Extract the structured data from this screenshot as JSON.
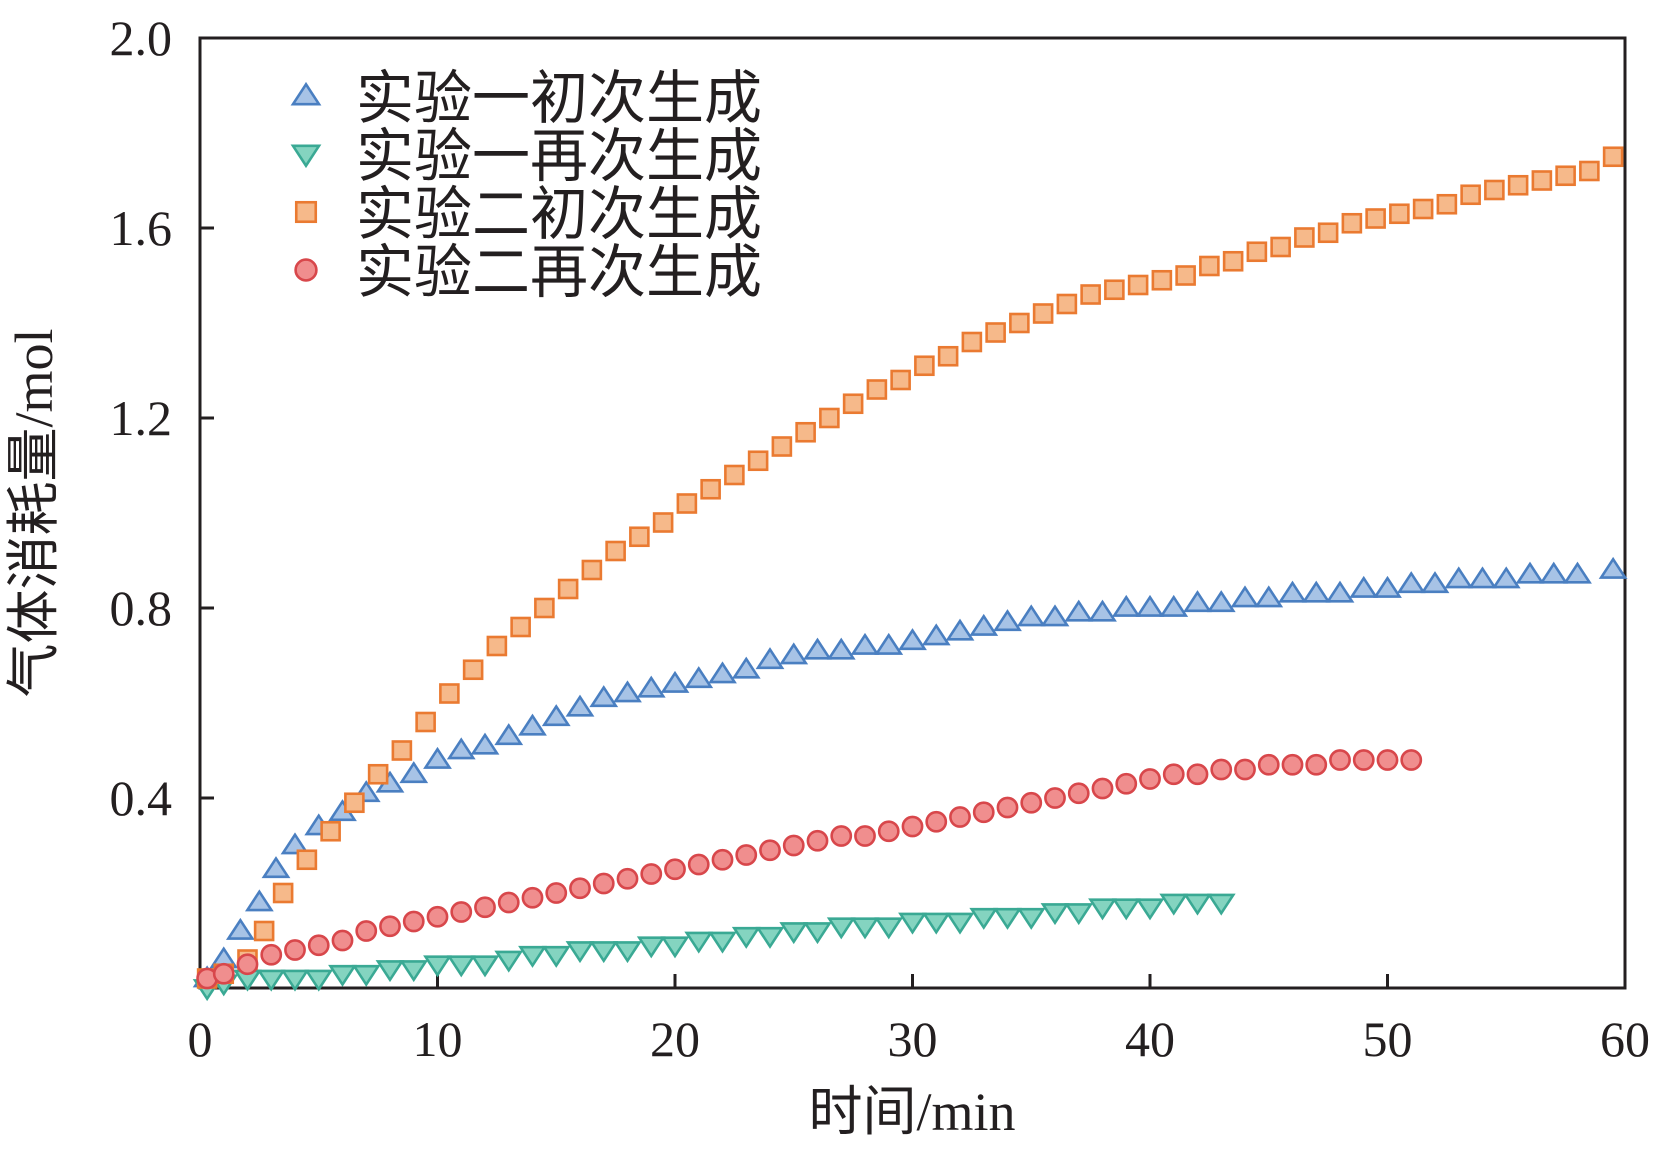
{
  "chart_data": {
    "type": "scatter",
    "title": "",
    "xlabel": "时间/min",
    "ylabel": "气体消耗量/mol",
    "xlim": [
      0,
      60
    ],
    "ylim": [
      0,
      2.0
    ],
    "x_ticks": [
      0,
      10,
      20,
      30,
      40,
      50,
      60
    ],
    "x_tick_labels": [
      "0",
      "10",
      "20",
      "30",
      "40",
      "50",
      "60"
    ],
    "y_ticks": [
      0.4,
      0.8,
      1.2,
      1.6,
      2.0
    ],
    "y_tick_labels": [
      "0.4",
      "0.8",
      "1.2",
      "1.6",
      "2.0"
    ],
    "grid": false,
    "legend_position": "top-left",
    "series": [
      {
        "name": "实验一初次生成",
        "marker": "triangle-up",
        "color": "#4a7fc1",
        "fill": "#a7c3e6",
        "x": [
          0.3,
          1,
          1.7,
          2.5,
          3.2,
          4,
          5,
          6,
          7,
          8,
          9,
          10,
          11,
          12,
          13,
          14,
          15,
          16,
          17,
          18,
          19,
          20,
          21,
          22,
          23,
          24,
          25,
          26,
          27,
          28,
          29,
          30,
          31,
          32,
          33,
          34,
          35,
          36,
          37,
          38,
          39,
          40,
          41,
          42,
          43,
          44,
          45,
          46,
          47,
          48,
          49,
          50,
          51,
          52,
          53,
          54,
          55,
          56,
          57,
          58,
          59.5
        ],
        "y": [
          0.02,
          0.06,
          0.12,
          0.18,
          0.25,
          0.3,
          0.34,
          0.37,
          0.41,
          0.43,
          0.45,
          0.48,
          0.5,
          0.51,
          0.53,
          0.55,
          0.57,
          0.59,
          0.61,
          0.62,
          0.63,
          0.64,
          0.65,
          0.66,
          0.67,
          0.69,
          0.7,
          0.71,
          0.71,
          0.72,
          0.72,
          0.73,
          0.74,
          0.75,
          0.76,
          0.77,
          0.78,
          0.78,
          0.79,
          0.79,
          0.8,
          0.8,
          0.8,
          0.81,
          0.81,
          0.82,
          0.82,
          0.83,
          0.83,
          0.83,
          0.84,
          0.84,
          0.85,
          0.85,
          0.86,
          0.86,
          0.86,
          0.87,
          0.87,
          0.87,
          0.88
        ]
      },
      {
        "name": "实验一再次生成",
        "marker": "triangle-down",
        "color": "#3aa994",
        "fill": "#84d4c0",
        "x": [
          0.3,
          1,
          2,
          3,
          4,
          5,
          6,
          7,
          8,
          9,
          10,
          11,
          12,
          13,
          14,
          15,
          16,
          17,
          18,
          19,
          20,
          21,
          22,
          23,
          24,
          25,
          26,
          27,
          28,
          29,
          30,
          31,
          32,
          33,
          34,
          35,
          36,
          37,
          38,
          39,
          40,
          41,
          42,
          43
        ],
        "y": [
          0.0,
          0.01,
          0.02,
          0.02,
          0.02,
          0.02,
          0.03,
          0.03,
          0.04,
          0.04,
          0.05,
          0.05,
          0.05,
          0.06,
          0.07,
          0.07,
          0.08,
          0.08,
          0.08,
          0.09,
          0.09,
          0.1,
          0.1,
          0.11,
          0.11,
          0.12,
          0.12,
          0.13,
          0.13,
          0.13,
          0.14,
          0.14,
          0.14,
          0.15,
          0.15,
          0.15,
          0.16,
          0.16,
          0.17,
          0.17,
          0.17,
          0.18,
          0.18,
          0.18
        ]
      },
      {
        "name": "实验二初次生成",
        "marker": "square",
        "color": "#ea7a31",
        "fill": "#f6b98a",
        "x": [
          0.3,
          1,
          2,
          2.7,
          3.5,
          4.5,
          5.5,
          6.5,
          7.5,
          8.5,
          9.5,
          10.5,
          11.5,
          12.5,
          13.5,
          14.5,
          15.5,
          16.5,
          17.5,
          18.5,
          19.5,
          20.5,
          21.5,
          22.5,
          23.5,
          24.5,
          25.5,
          26.5,
          27.5,
          28.5,
          29.5,
          30.5,
          31.5,
          32.5,
          33.5,
          34.5,
          35.5,
          36.5,
          37.5,
          38.5,
          39.5,
          40.5,
          41.5,
          42.5,
          43.5,
          44.5,
          45.5,
          46.5,
          47.5,
          48.5,
          49.5,
          50.5,
          51.5,
          52.5,
          53.5,
          54.5,
          55.5,
          56.5,
          57.5,
          58.5,
          59.5
        ],
        "y": [
          0.02,
          0.03,
          0.06,
          0.12,
          0.2,
          0.27,
          0.33,
          0.39,
          0.45,
          0.5,
          0.56,
          0.62,
          0.67,
          0.72,
          0.76,
          0.8,
          0.84,
          0.88,
          0.92,
          0.95,
          0.98,
          1.02,
          1.05,
          1.08,
          1.11,
          1.14,
          1.17,
          1.2,
          1.23,
          1.26,
          1.28,
          1.31,
          1.33,
          1.36,
          1.38,
          1.4,
          1.42,
          1.44,
          1.46,
          1.47,
          1.48,
          1.49,
          1.5,
          1.52,
          1.53,
          1.55,
          1.56,
          1.58,
          1.59,
          1.61,
          1.62,
          1.63,
          1.64,
          1.65,
          1.67,
          1.68,
          1.69,
          1.7,
          1.71,
          1.72,
          1.75
        ]
      },
      {
        "name": "实验二再次生成",
        "marker": "circle",
        "color": "#d8474b",
        "fill": "#f08e8e",
        "x": [
          0.3,
          1,
          2,
          3,
          4,
          5,
          6,
          7,
          8,
          9,
          10,
          11,
          12,
          13,
          14,
          15,
          16,
          17,
          18,
          19,
          20,
          21,
          22,
          23,
          24,
          25,
          26,
          27,
          28,
          29,
          30,
          31,
          32,
          33,
          34,
          35,
          36,
          37,
          38,
          39,
          40,
          41,
          42,
          43,
          44,
          45,
          46,
          47,
          48,
          49,
          50,
          51
        ],
        "y": [
          0.02,
          0.03,
          0.05,
          0.07,
          0.08,
          0.09,
          0.1,
          0.12,
          0.13,
          0.14,
          0.15,
          0.16,
          0.17,
          0.18,
          0.19,
          0.2,
          0.21,
          0.22,
          0.23,
          0.24,
          0.25,
          0.26,
          0.27,
          0.28,
          0.29,
          0.3,
          0.31,
          0.32,
          0.32,
          0.33,
          0.34,
          0.35,
          0.36,
          0.37,
          0.38,
          0.39,
          0.4,
          0.41,
          0.42,
          0.43,
          0.44,
          0.45,
          0.45,
          0.46,
          0.46,
          0.47,
          0.47,
          0.47,
          0.48,
          0.48,
          0.48,
          0.48
        ]
      }
    ]
  }
}
